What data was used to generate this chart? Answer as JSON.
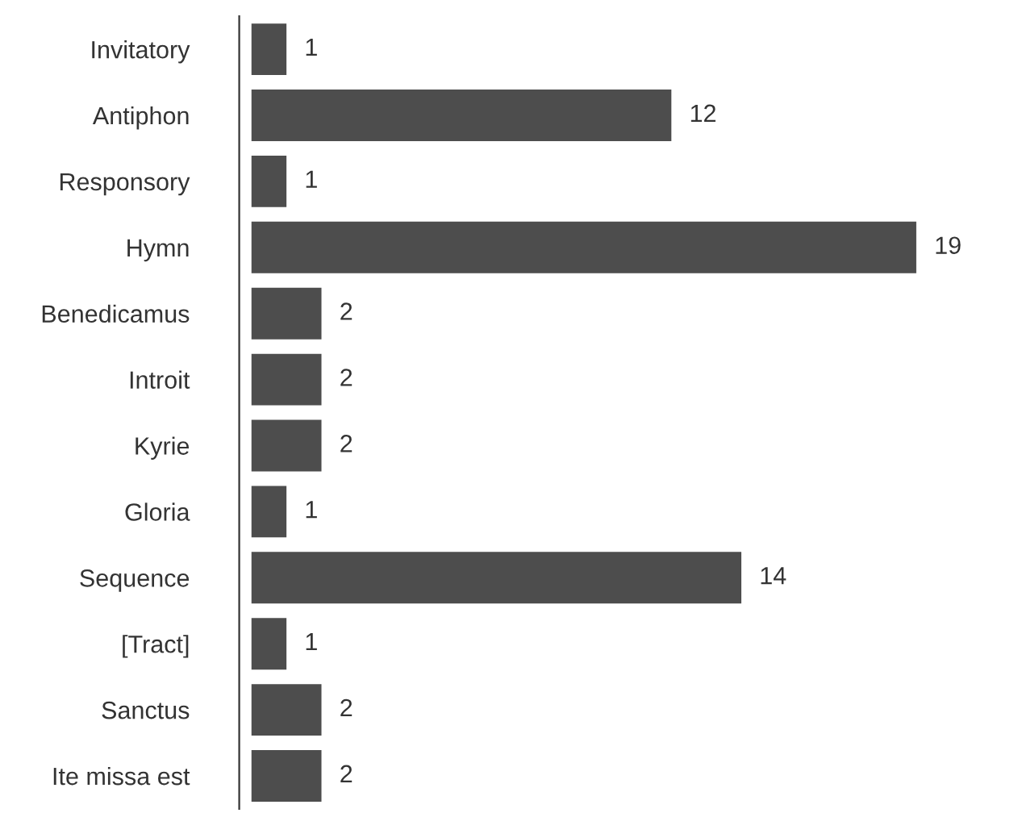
{
  "chart_data": {
    "type": "bar",
    "orientation": "horizontal",
    "categories": [
      "Invitatory",
      "Antiphon",
      "Responsory",
      "Hymn",
      "Benedicamus",
      "Introit",
      "Kyrie",
      "Gloria",
      "Sequence",
      "[Tract]",
      "Sanctus",
      "Ite missa est"
    ],
    "values": [
      1,
      12,
      1,
      19,
      2,
      2,
      2,
      1,
      14,
      1,
      2,
      2
    ],
    "color": "#4d4d4d",
    "data_labels": true,
    "tick_labels": "y",
    "grid": false,
    "legend": false
  }
}
